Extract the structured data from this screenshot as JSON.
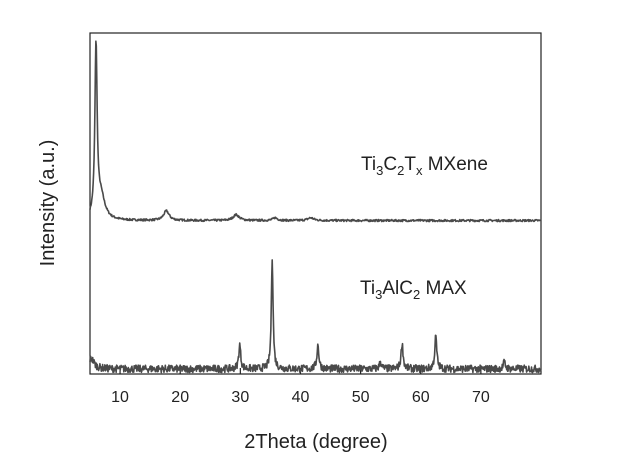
{
  "chart_data": {
    "type": "line",
    "xlabel": "2Theta (degree)",
    "ylabel": "Intensity (a.u.)",
    "xlim": [
      5,
      80
    ],
    "xticks": [
      10,
      20,
      30,
      40,
      50,
      60,
      70
    ],
    "yticks": "none",
    "grid": false,
    "legend": "none",
    "line_color": "#4a4a4a",
    "annotations": [
      {
        "id": "mxene",
        "parts": [
          "Ti",
          "3",
          "C",
          "2",
          "T",
          "x",
          " MXene"
        ]
      },
      {
        "id": "max",
        "parts": [
          "Ti",
          "3",
          "AlC",
          "2",
          " MAX"
        ]
      }
    ],
    "series": [
      {
        "id": "mxene",
        "baseline": 0.45,
        "noise": 0.003,
        "peaks": [
          {
            "x": 6.0,
            "height": 0.5,
            "width": 0.22
          },
          {
            "x": 6.8,
            "height": 0.07,
            "width": 0.8
          },
          {
            "x": 17.7,
            "height": 0.028,
            "width": 0.55
          },
          {
            "x": 29.3,
            "height": 0.017,
            "width": 0.6
          },
          {
            "x": 35.8,
            "height": 0.008,
            "width": 0.45
          },
          {
            "x": 41.7,
            "height": 0.008,
            "width": 0.6
          }
        ]
      },
      {
        "id": "max",
        "baseline": 0.015,
        "noise": 0.011,
        "peaks": [
          {
            "x": 5.2,
            "height": 0.03,
            "width": 0.6
          },
          {
            "x": 29.9,
            "height": 0.07,
            "width": 0.2
          },
          {
            "x": 35.3,
            "height": 0.33,
            "width": 0.17
          },
          {
            "x": 42.9,
            "height": 0.07,
            "width": 0.2
          },
          {
            "x": 53.3,
            "height": 0.02,
            "width": 0.2
          },
          {
            "x": 56.9,
            "height": 0.075,
            "width": 0.2
          },
          {
            "x": 62.5,
            "height": 0.095,
            "width": 0.2
          },
          {
            "x": 73.9,
            "height": 0.02,
            "width": 0.2
          }
        ]
      }
    ]
  }
}
